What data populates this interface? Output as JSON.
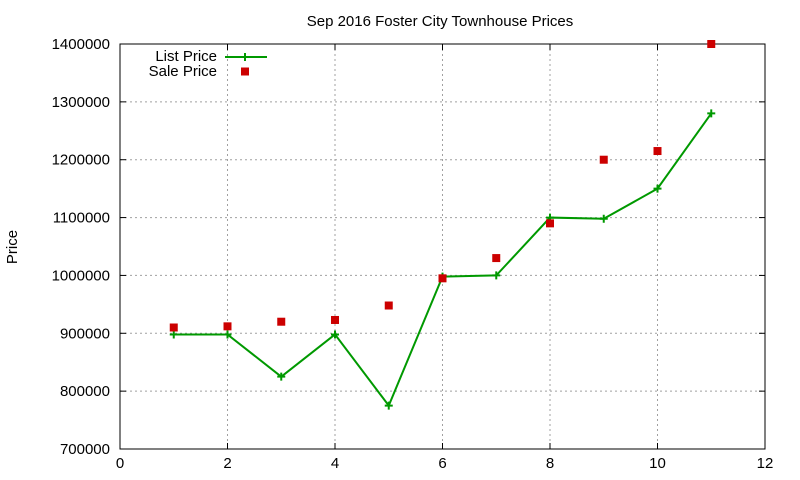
{
  "chart_data": {
    "type": "line",
    "title": "Sep 2016 Foster City Townhouse Prices",
    "xlabel": "",
    "ylabel": "Price",
    "xlim": [
      0,
      12
    ],
    "ylim": [
      700000,
      1400000
    ],
    "x_ticks": [
      0,
      2,
      4,
      6,
      8,
      10,
      12
    ],
    "y_ticks": [
      700000,
      800000,
      900000,
      1000000,
      1100000,
      1200000,
      1300000,
      1400000
    ],
    "grid": true,
    "legend_position": "top-left",
    "series": [
      {
        "name": "List Price",
        "style": "line-points",
        "marker": "plus",
        "color": "#009900",
        "x": [
          1,
          2,
          3,
          4,
          5,
          6,
          7,
          8,
          9,
          10,
          11
        ],
        "y": [
          898000,
          898000,
          825000,
          898000,
          775000,
          998000,
          1000000,
          1100000,
          1098000,
          1150000,
          1280000
        ]
      },
      {
        "name": "Sale Price",
        "style": "points",
        "marker": "square",
        "color": "#cc0000",
        "x": [
          1,
          2,
          3,
          4,
          5,
          6,
          7,
          8,
          9,
          10,
          11
        ],
        "y": [
          910000,
          912000,
          920000,
          923000,
          948000,
          995000,
          1030000,
          1090000,
          1200000,
          1215000,
          1400000
        ]
      }
    ]
  }
}
